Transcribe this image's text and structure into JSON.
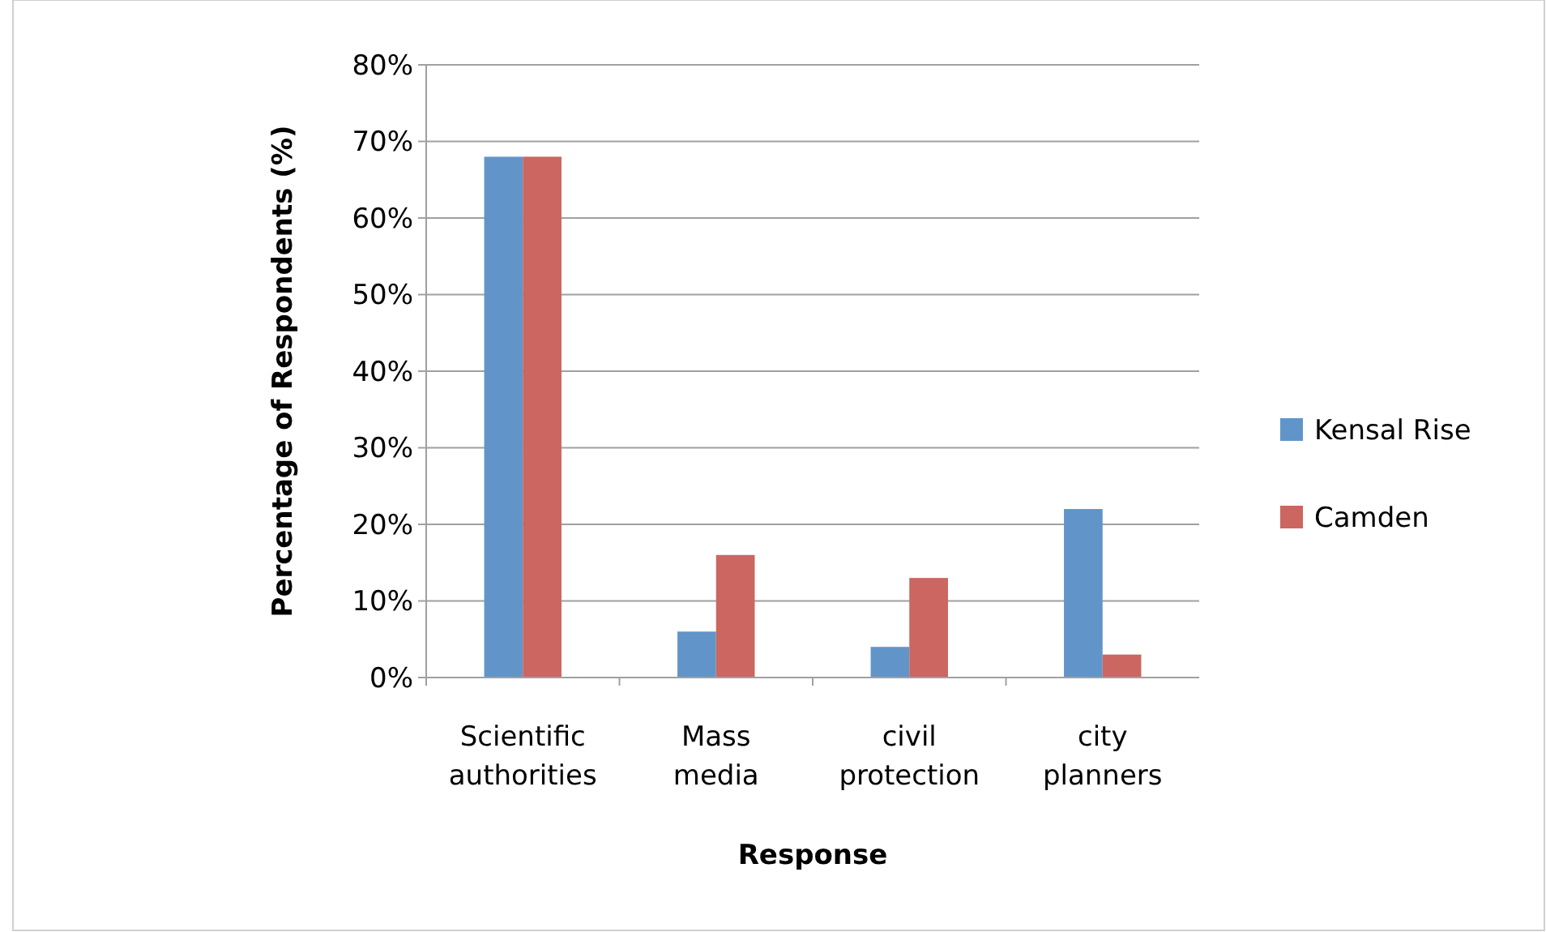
{
  "chart_data": {
    "type": "bar",
    "xlabel": "Response",
    "ylabel": "Percentage of Respondents (%)",
    "categories": [
      "Scientific authorities",
      "Mass media",
      "civil protection",
      "city planners"
    ],
    "series": [
      {
        "name": "Kensal Rise",
        "color": "#6195c9",
        "values": [
          68,
          6,
          4,
          22
        ]
      },
      {
        "name": "Camden",
        "color": "#cb6660",
        "values": [
          68,
          16,
          13,
          3
        ]
      }
    ],
    "ylim": [
      0,
      80
    ],
    "yticks": [
      {
        "value": 0,
        "label": "0%"
      },
      {
        "value": 10,
        "label": "10%"
      },
      {
        "value": 20,
        "label": "20%"
      },
      {
        "value": 30,
        "label": "30%"
      },
      {
        "value": 40,
        "label": "40%"
      },
      {
        "value": 50,
        "label": "50%"
      },
      {
        "value": 60,
        "label": "60%"
      },
      {
        "value": 70,
        "label": "70%"
      },
      {
        "value": 80,
        "label": "80%"
      }
    ],
    "grid": "y",
    "legend": "right"
  }
}
